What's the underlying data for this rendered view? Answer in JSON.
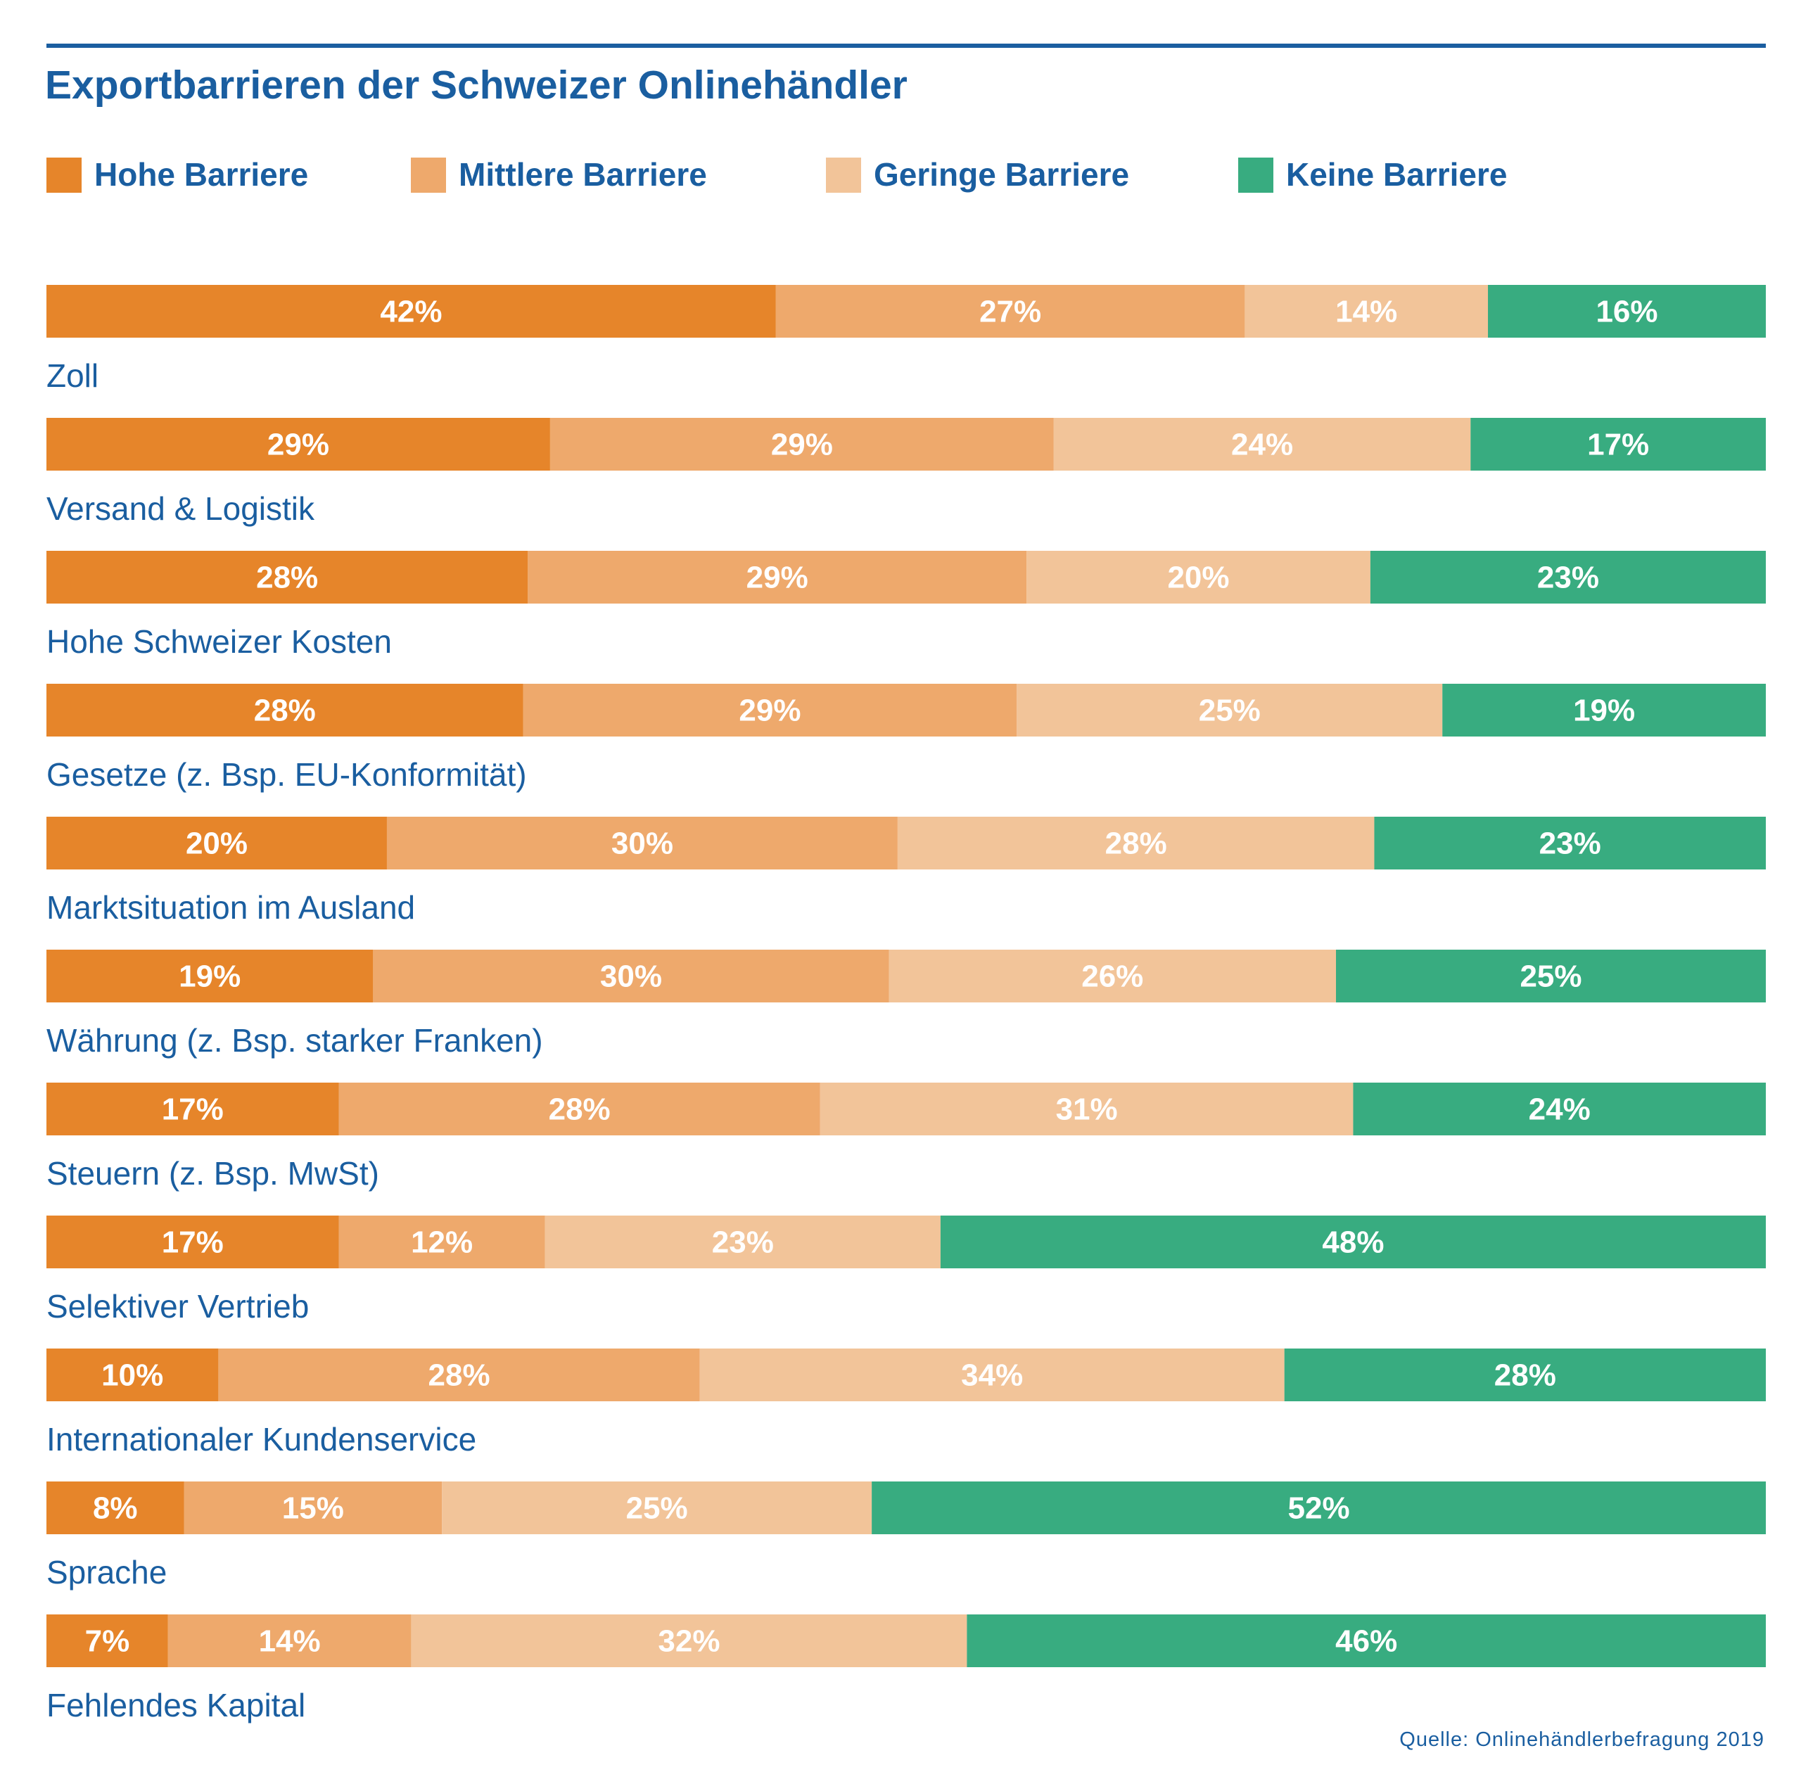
{
  "chart_data": {
    "type": "bar",
    "orientation": "horizontal",
    "stacked": true,
    "title": "Exportbarrieren der Schweizer Onlinehändler",
    "xlim": [
      0,
      100
    ],
    "grid": false,
    "legend_position": "top",
    "categories": [
      "Zoll",
      "Versand & Logistik",
      "Hohe Schweizer Kosten",
      "Gesetze (z. Bsp. EU-Konformität)",
      "Marktsituation im Ausland",
      "Währung (z. Bsp. starker Franken)",
      "Steuern (z. Bsp. MwSt)",
      "Selektiver Vertrieb",
      "Internationaler Kundenservice",
      "Sprache",
      "Fehlendes Kapital"
    ],
    "series": [
      {
        "name": "Hohe Barriere",
        "color": "#e6852a",
        "values": [
          42,
          29,
          28,
          28,
          20,
          19,
          17,
          17,
          10,
          8,
          7
        ]
      },
      {
        "name": "Mittlere Barriere",
        "color": "#eea96c",
        "values": [
          27,
          29,
          29,
          29,
          30,
          30,
          28,
          12,
          28,
          15,
          14
        ]
      },
      {
        "name": "Geringe Barriere",
        "color": "#f2c499",
        "values": [
          14,
          24,
          20,
          25,
          28,
          26,
          31,
          23,
          34,
          25,
          32
        ]
      },
      {
        "name": "Keine Barriere",
        "color": "#38ac80",
        "values": [
          16,
          17,
          23,
          19,
          23,
          25,
          24,
          48,
          28,
          52,
          46
        ]
      }
    ],
    "value_labels": [
      [
        "42%",
        "27%",
        "14%",
        "16%"
      ],
      [
        "29%",
        "29%",
        "24%",
        "17%"
      ],
      [
        "28%",
        "29%",
        "20%",
        "23%"
      ],
      [
        "28%",
        "29%",
        "25%",
        "19%"
      ],
      [
        "20%",
        "30%",
        "28%",
        "23%"
      ],
      [
        "19%",
        "30%",
        "26%",
        "25%"
      ],
      [
        "17%",
        "28%",
        "31%",
        "24%"
      ],
      [
        "17%",
        "12%",
        "23%",
        "48%"
      ],
      [
        "10%",
        "28%",
        "34%",
        "28%"
      ],
      [
        "8%",
        "15%",
        "25%",
        "52%"
      ],
      [
        "7%",
        "14%",
        "32%",
        "46%"
      ]
    ],
    "source": "Quelle: Onlinehändlerbefragung 2019"
  },
  "colors": {
    "text_blue": "#1a5ea0",
    "rule_blue": "#1a5ea0",
    "value_label": "#ffffff"
  }
}
